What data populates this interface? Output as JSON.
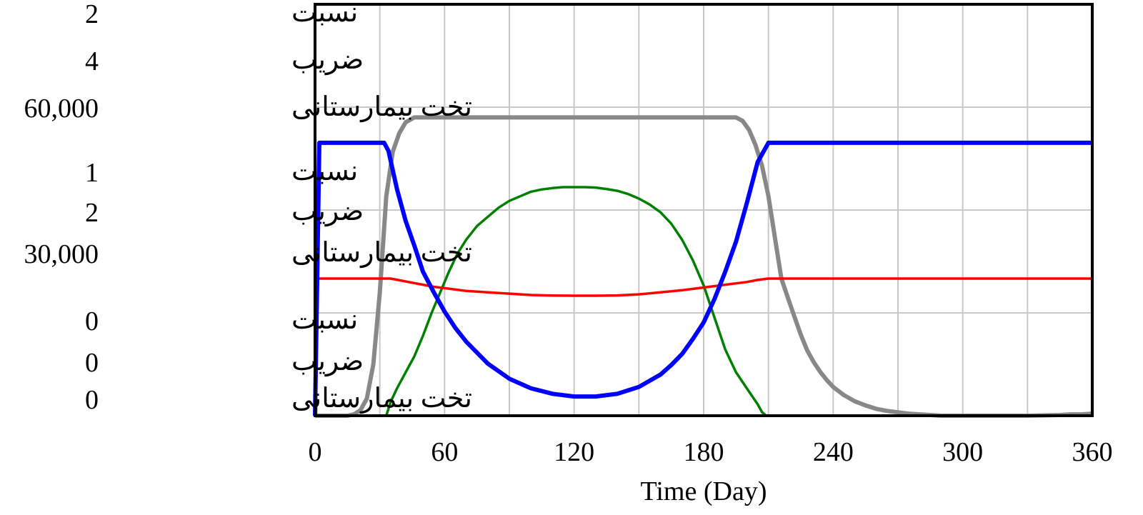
{
  "chart_data": {
    "type": "line",
    "xlabel": "Time (Day)",
    "xlim": [
      0,
      360
    ],
    "x_ticks": [
      "0",
      "60",
      "120",
      "180",
      "240",
      "300",
      "360"
    ],
    "grid": true,
    "y_axis_blocks": [
      {
        "rows": [
          {
            "number": "2",
            "name": "نسبت"
          },
          {
            "number": "4",
            "name": "ضریب"
          },
          {
            "number": "60,000",
            "name": "تخت بیمارستانی"
          }
        ]
      },
      {
        "rows": [
          {
            "number": "1",
            "name": "نسبت"
          },
          {
            "number": "2",
            "name": "ضریب"
          },
          {
            "number": "30,000",
            "name": "تخت بیمارستانی"
          }
        ]
      },
      {
        "rows": [
          {
            "number": "0",
            "name": "نسبت"
          },
          {
            "number": "0",
            "name": "ضریب"
          },
          {
            "number": "0",
            "name": "تخت بیمارستانی"
          }
        ]
      }
    ],
    "series": [
      {
        "color": "#888888",
        "axis": "ضریب",
        "x": [
          0,
          15,
          18,
          21,
          24,
          27,
          30,
          33,
          36,
          39,
          42,
          46,
          60,
          120,
          195,
          198,
          201,
          204,
          207,
          210,
          213,
          216,
          219,
          222,
          225,
          228,
          231,
          234,
          237,
          240,
          245,
          250,
          255,
          260,
          265,
          270,
          275,
          280,
          285,
          290,
          300,
          330,
          345,
          350,
          355,
          360
        ],
        "y": [
          0,
          0,
          0.02,
          0.08,
          0.25,
          0.75,
          1.8,
          3.2,
          3.85,
          4.12,
          4.28,
          4.35,
          4.35,
          4.35,
          4.35,
          4.3,
          4.17,
          3.95,
          3.65,
          3.2,
          2.6,
          2.0,
          1.72,
          1.45,
          1.18,
          0.95,
          0.78,
          0.64,
          0.52,
          0.42,
          0.3,
          0.21,
          0.15,
          0.1,
          0.07,
          0.05,
          0.03,
          0.02,
          0.01,
          0,
          0,
          0,
          0.01,
          0.02,
          0.02,
          0.03
        ]
      },
      {
        "color": "#008000",
        "axis": "تخت بیمارستانی",
        "x": [
          0,
          0.5,
          33,
          35,
          38,
          42,
          46,
          50,
          54,
          58,
          62,
          66,
          70,
          75,
          80,
          85,
          90,
          95,
          100,
          105,
          110,
          115,
          120,
          125,
          130,
          135,
          140,
          145,
          150,
          155,
          160,
          165,
          170,
          175,
          180,
          185,
          190,
          195,
          200,
          205,
          207,
          209
        ],
        "y": [
          70000,
          0,
          0,
          3000,
          6000,
          9500,
          13000,
          17500,
          22500,
          27000,
          31500,
          35500,
          38500,
          41500,
          43500,
          45500,
          47000,
          48000,
          49000,
          49500,
          49800,
          50000,
          50000,
          50000,
          49900,
          49600,
          49200,
          48500,
          47500,
          46200,
          44500,
          42000,
          38500,
          34000,
          28500,
          21500,
          14500,
          9500,
          6000,
          2500,
          800,
          0
        ]
      },
      {
        "color": "#ff0000",
        "axis": "نسبت",
        "x": [
          0,
          35,
          40,
          45,
          50,
          55,
          60,
          70,
          80,
          90,
          100,
          110,
          120,
          130,
          140,
          150,
          160,
          170,
          180,
          190,
          200,
          205,
          210,
          360
        ],
        "y": [
          1,
          1,
          0.985,
          0.97,
          0.955,
          0.94,
          0.93,
          0.91,
          0.9,
          0.89,
          0.88,
          0.876,
          0.875,
          0.875,
          0.877,
          0.885,
          0.9,
          0.915,
          0.935,
          0.955,
          0.975,
          0.99,
          1,
          1
        ]
      },
      {
        "color": "#0000ff",
        "axis": "نسبت",
        "x": [
          0,
          2,
          32,
          34,
          38,
          42,
          46,
          50,
          55,
          60,
          65,
          70,
          80,
          90,
          100,
          110,
          120,
          130,
          140,
          150,
          160,
          165,
          170,
          175,
          180,
          185,
          190,
          195,
          200,
          205,
          210,
          360
        ],
        "y": [
          0,
          1.99,
          1.99,
          1.93,
          1.65,
          1.42,
          1.24,
          1.05,
          0.9,
          0.76,
          0.64,
          0.54,
          0.38,
          0.27,
          0.2,
          0.16,
          0.14,
          0.14,
          0.16,
          0.21,
          0.3,
          0.37,
          0.45,
          0.56,
          0.68,
          0.85,
          1.05,
          1.27,
          1.55,
          1.85,
          1.99,
          1.99
        ]
      }
    ]
  }
}
